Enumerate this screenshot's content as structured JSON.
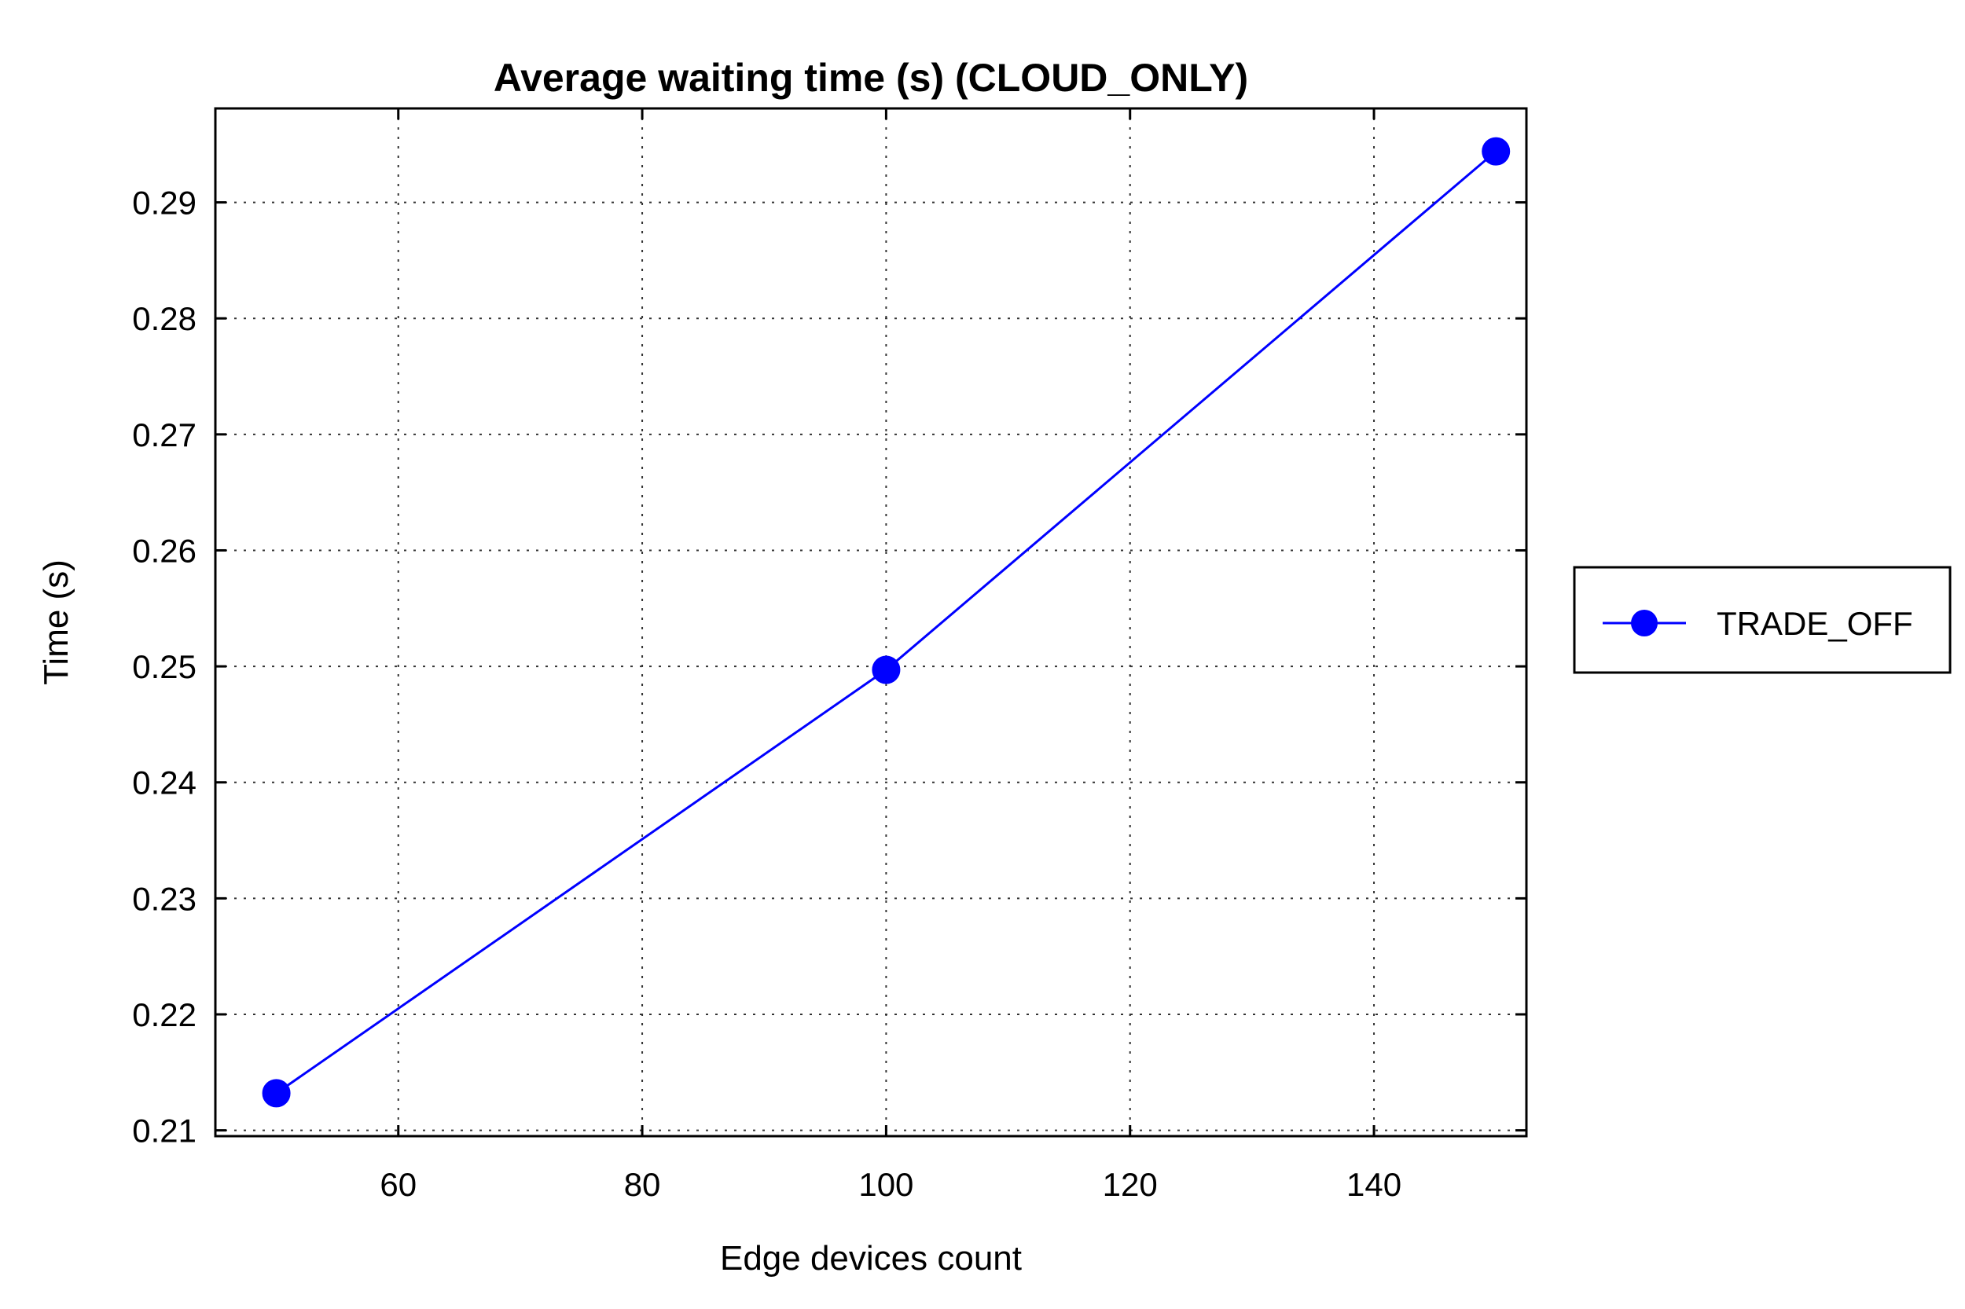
{
  "chart_data": {
    "type": "line",
    "title": "Average waiting time (s) (CLOUD_ONLY)",
    "xlabel": "Edge devices count",
    "ylabel": "Time (s)",
    "xlim": [
      45,
      152.5
    ],
    "ylim": [
      0.2095,
      0.2981
    ],
    "x_ticks": [
      60,
      80,
      100,
      120,
      140
    ],
    "x_tick_labels": [
      "60",
      "80",
      "100",
      "120",
      "140"
    ],
    "y_ticks": [
      0.21,
      0.22,
      0.23,
      0.24,
      0.25,
      0.26,
      0.27,
      0.28,
      0.29
    ],
    "y_tick_labels": [
      "0.21",
      "0.22",
      "0.23",
      "0.24",
      "0.25",
      "0.26",
      "0.27",
      "0.28",
      "0.29"
    ],
    "grid": true,
    "legend_position": "outside-right",
    "series": [
      {
        "name": "TRADE_OFF",
        "color": "#0000ff",
        "marker": "circle",
        "x": [
          50,
          100,
          150
        ],
        "y": [
          0.2132,
          0.2497,
          0.2944
        ]
      }
    ]
  }
}
